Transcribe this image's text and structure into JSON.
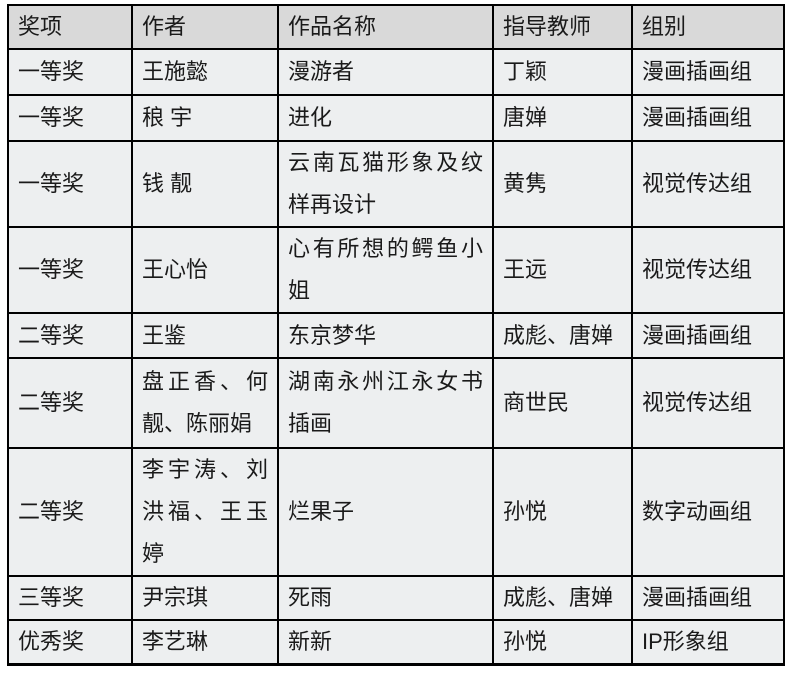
{
  "table": {
    "columns": [
      {
        "key": "award",
        "label": "奖项"
      },
      {
        "key": "author",
        "label": "作者"
      },
      {
        "key": "work",
        "label": "作品名称"
      },
      {
        "key": "teacher",
        "label": "指导教师"
      },
      {
        "key": "group",
        "label": "组别"
      }
    ],
    "rows": [
      {
        "award": "一等奖",
        "author": "王施懿",
        "work": "漫游者",
        "teacher": "丁颖",
        "group": "漫画插画组"
      },
      {
        "award": "一等奖",
        "author": "稂 宇",
        "work": "进化",
        "teacher": "唐婵",
        "group": "漫画插画组"
      },
      {
        "award": "一等奖",
        "author": "钱 靓",
        "work": "云南瓦猫形象及纹样再设计",
        "teacher": "黄隽",
        "group": "视觉传达组"
      },
      {
        "award": "一等奖",
        "author": "王心怡",
        "work": "心有所想的鳄鱼小姐",
        "teacher": "王远",
        "group": "视觉传达组"
      },
      {
        "award": "二等奖",
        "author": "王鉴",
        "work": "东京梦华",
        "teacher": "成彪、唐婵",
        "group": "漫画插画组"
      },
      {
        "award": "二等奖",
        "author": "盘正香、何靓、陈丽娟",
        "work": "湖南永州江永女书插画",
        "teacher": "商世民",
        "group": "视觉传达组"
      },
      {
        "award": "二等奖",
        "author": "李宇涛、刘洪福、王玉婷",
        "work": "烂果子",
        "teacher": "孙悦",
        "group": "数字动画组"
      },
      {
        "award": "三等奖",
        "author": "尹宗琪",
        "work": "死雨",
        "teacher": "成彪、唐婵",
        "group": "漫画插画组"
      },
      {
        "award": "优秀奖",
        "author": "李艺琳",
        "work": "新新",
        "teacher": "孙悦",
        "group": "IP形象组"
      }
    ],
    "colors": {
      "header_bg": "#d9d9d9",
      "cell_bg": "#edeff0",
      "border": "#000000",
      "text": "#1a1a1a"
    }
  }
}
